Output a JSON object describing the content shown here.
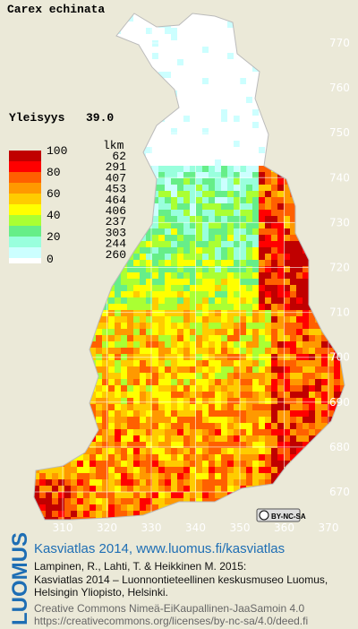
{
  "header": {
    "title": "Carex echinata",
    "frequency_label": "Yleisyys",
    "frequency_value": "39.0"
  },
  "legend": {
    "percent_labels": [
      "100",
      "80",
      "60",
      "40",
      "20",
      "0"
    ],
    "count_header": "lkm",
    "counts": [
      62,
      291,
      407,
      453,
      464,
      406,
      237,
      303,
      244,
      260
    ]
  },
  "axis": {
    "northing": [
      770,
      760,
      750,
      740,
      730,
      720,
      710,
      700,
      690,
      680,
      670
    ],
    "easting": [
      310,
      320,
      330,
      340,
      350,
      360,
      370
    ]
  },
  "badge": "BY-NC-SA",
  "footer": {
    "brand": "LUOMUS",
    "atlas_link": "Kasviatlas 2014, www.luomus.fi/kasviatlas",
    "citation": [
      "Lampinen, R., Lahti, T. & Heikkinen M. 2015:",
      "Kasviatlas 2014 – Luonnontieteellinen keskusmuseo Luomus,",
      "Helsingin Yliopisto, Helsinki."
    ],
    "license": [
      "Creative Commons Nimeä-EiKaupallinen-JaaSamoin 4.0",
      "https://creativecommons.org/licenses/by-nc-sa/4.0/deed.fi"
    ]
  }
}
